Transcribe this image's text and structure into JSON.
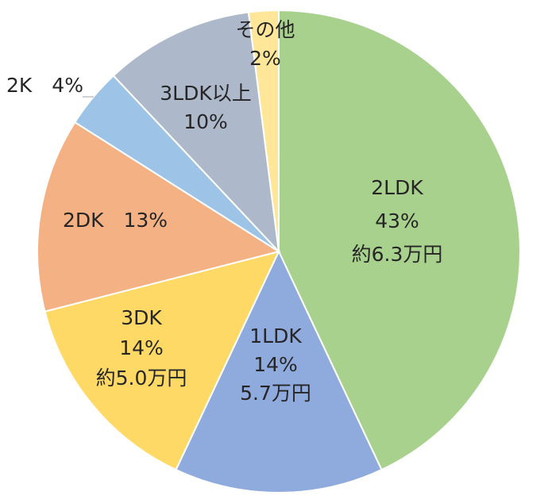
{
  "chart_data": {
    "type": "pie",
    "title": "",
    "start": "12 o'clock, clockwise",
    "slices": [
      {
        "category": "2LDK",
        "percent": 43,
        "color": "#a9d18e",
        "label_lines": [
          "2LDK",
          "43%",
          "約6.3万円"
        ]
      },
      {
        "category": "1LDK",
        "percent": 14,
        "color": "#8faadc",
        "label_lines": [
          "1LDK",
          "14%",
          "5.7万円"
        ]
      },
      {
        "category": "3DK",
        "percent": 14,
        "color": "#ffd966",
        "label_lines": [
          "3DK",
          "14%",
          "約5.0万円"
        ]
      },
      {
        "category": "2DK",
        "percent": 13,
        "color": "#f4b183",
        "label_lines": [
          "2DK　13%"
        ]
      },
      {
        "category": "2K",
        "percent": 4,
        "color": "#9dc3e6",
        "label_lines": [
          "2K　4%"
        ],
        "leader_line": true
      },
      {
        "category": "3LDK以上",
        "percent": 10,
        "color": "#adb9ca",
        "label_lines": [
          "3LDK以上",
          "10%"
        ]
      },
      {
        "category": "その他",
        "percent": 2,
        "color": "#ffe699",
        "label_lines": [
          "その他",
          "2%"
        ]
      }
    ]
  }
}
